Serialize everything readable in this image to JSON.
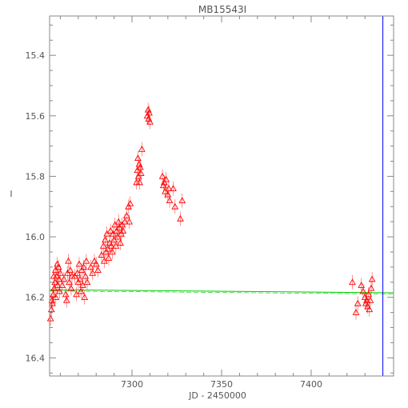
{
  "chart_data": {
    "type": "scatter",
    "title": "MB15543I",
    "xlabel": "JD - 2450000",
    "ylabel": "I",
    "xlim": [
      7254,
      7446
    ],
    "ylim": [
      16.46,
      15.27
    ],
    "y_inverted": true,
    "grid": false,
    "marker": "open-triangle",
    "x_ticks": [
      7300,
      7350,
      7400
    ],
    "x_tick_labels": [
      "7300",
      "7350",
      "7400"
    ],
    "y_ticks": [
      15.4,
      15.6,
      15.8,
      16.0,
      16.2,
      16.4
    ],
    "y_tick_labels": [
      "15.4",
      "15.6",
      "15.8",
      "16.0",
      "16.2",
      "16.4"
    ],
    "colors": {
      "points": "#ff0000",
      "baseline": "#00cc00",
      "vline": "#0000ff",
      "axes": "#888888"
    },
    "baseline": {
      "x": [
        7254,
        7446
      ],
      "y": [
        16.175,
        16.185
      ]
    },
    "vertical_line_x": 7440,
    "series": [
      {
        "points": [
          [
            7254.5,
            16.27
          ],
          [
            7255,
            16.24
          ],
          [
            7255.5,
            16.22
          ],
          [
            7256,
            16.19
          ],
          [
            7256.5,
            16.17
          ],
          [
            7257,
            16.15
          ],
          [
            7257.5,
            16.2
          ],
          [
            7258,
            16.13
          ],
          [
            7258.5,
            16.16
          ],
          [
            7259,
            16.1
          ],
          [
            7259.5,
            16.18
          ],
          [
            7260,
            16.12
          ],
          [
            7255.3,
            16.21
          ],
          [
            7256.3,
            16.13
          ],
          [
            7257.3,
            16.11
          ],
          [
            7258.3,
            16.09
          ],
          [
            7259.3,
            16.14
          ],
          [
            7261,
            16.16
          ],
          [
            7262,
            16.14
          ],
          [
            7263,
            16.19
          ],
          [
            7264,
            16.12
          ],
          [
            7264.5,
            16.08
          ],
          [
            7265,
            16.15
          ],
          [
            7265.5,
            16.11
          ],
          [
            7266,
            16.17
          ],
          [
            7266.5,
            16.13
          ],
          [
            7263.5,
            16.21
          ],
          [
            7268,
            16.13
          ],
          [
            7269,
            16.19
          ],
          [
            7270,
            16.15
          ],
          [
            7270.5,
            16.09
          ],
          [
            7271,
            16.14
          ],
          [
            7271.5,
            16.18
          ],
          [
            7272,
            16.11
          ],
          [
            7272.5,
            16.16
          ],
          [
            7273,
            16.1
          ],
          [
            7273.5,
            16.2
          ],
          [
            7274,
            16.13
          ],
          [
            7274.5,
            16.08
          ],
          [
            7275,
            16.15
          ],
          [
            7269.5,
            16.12
          ],
          [
            7277,
            16.1
          ],
          [
            7278,
            16.12
          ],
          [
            7279,
            16.08
          ],
          [
            7280,
            16.09
          ],
          [
            7281,
            16.11
          ],
          [
            7283,
            16.06
          ],
          [
            7284,
            16.03
          ],
          [
            7284.5,
            16.08
          ],
          [
            7285,
            16.01
          ],
          [
            7285.5,
            16.05
          ],
          [
            7286,
            15.99
          ],
          [
            7286.5,
            16.04
          ],
          [
            7287,
            16.07
          ],
          [
            7287.5,
            16.02
          ],
          [
            7288,
            15.98
          ],
          [
            7288.5,
            16.03
          ],
          [
            7289,
            16.05
          ],
          [
            7289.5,
            15.99
          ],
          [
            7290,
            16.01
          ],
          [
            7290.5,
            15.96
          ],
          [
            7291,
            16.03
          ],
          [
            7291.5,
            15.98
          ],
          [
            7292,
            16.0
          ],
          [
            7292.5,
            15.95
          ],
          [
            7293,
            15.97
          ],
          [
            7293.5,
            16.02
          ],
          [
            7294,
            15.99
          ],
          [
            7294.5,
            15.96
          ],
          [
            7295,
            15.98
          ],
          [
            7296,
            15.95
          ],
          [
            7297,
            15.93
          ],
          [
            7298,
            15.9
          ],
          [
            7298.5,
            15.95
          ],
          [
            7299,
            15.89
          ],
          [
            7302.5,
            15.82
          ],
          [
            7303,
            15.78
          ],
          [
            7303.3,
            15.74
          ],
          [
            7303.6,
            15.8
          ],
          [
            7304,
            15.76
          ],
          [
            7304.3,
            15.82
          ],
          [
            7304.6,
            15.77
          ],
          [
            7305,
            15.79
          ],
          [
            7305.5,
            15.71
          ],
          [
            7308.5,
            15.6
          ],
          [
            7309,
            15.58
          ],
          [
            7309.3,
            15.61
          ],
          [
            7309.6,
            15.59
          ],
          [
            7310,
            15.62
          ],
          [
            7317,
            15.8
          ],
          [
            7317.5,
            15.83
          ],
          [
            7318,
            15.82
          ],
          [
            7318.5,
            15.85
          ],
          [
            7319,
            15.81
          ],
          [
            7320,
            15.86
          ],
          [
            7320.5,
            15.84
          ],
          [
            7321,
            15.88
          ],
          [
            7323,
            15.84
          ],
          [
            7324,
            15.9
          ],
          [
            7327,
            15.94
          ],
          [
            7328,
            15.88
          ],
          [
            7423,
            16.15
          ],
          [
            7425,
            16.25
          ],
          [
            7426,
            16.22
          ],
          [
            7428,
            16.16
          ],
          [
            7429,
            16.18
          ],
          [
            7430,
            16.2
          ],
          [
            7430.5,
            16.22
          ],
          [
            7431,
            16.21
          ],
          [
            7431.5,
            16.23
          ],
          [
            7432,
            16.19
          ],
          [
            7432.5,
            16.24
          ],
          [
            7433,
            16.21
          ],
          [
            7433.5,
            16.17
          ],
          [
            7434,
            16.14
          ]
        ]
      }
    ]
  }
}
